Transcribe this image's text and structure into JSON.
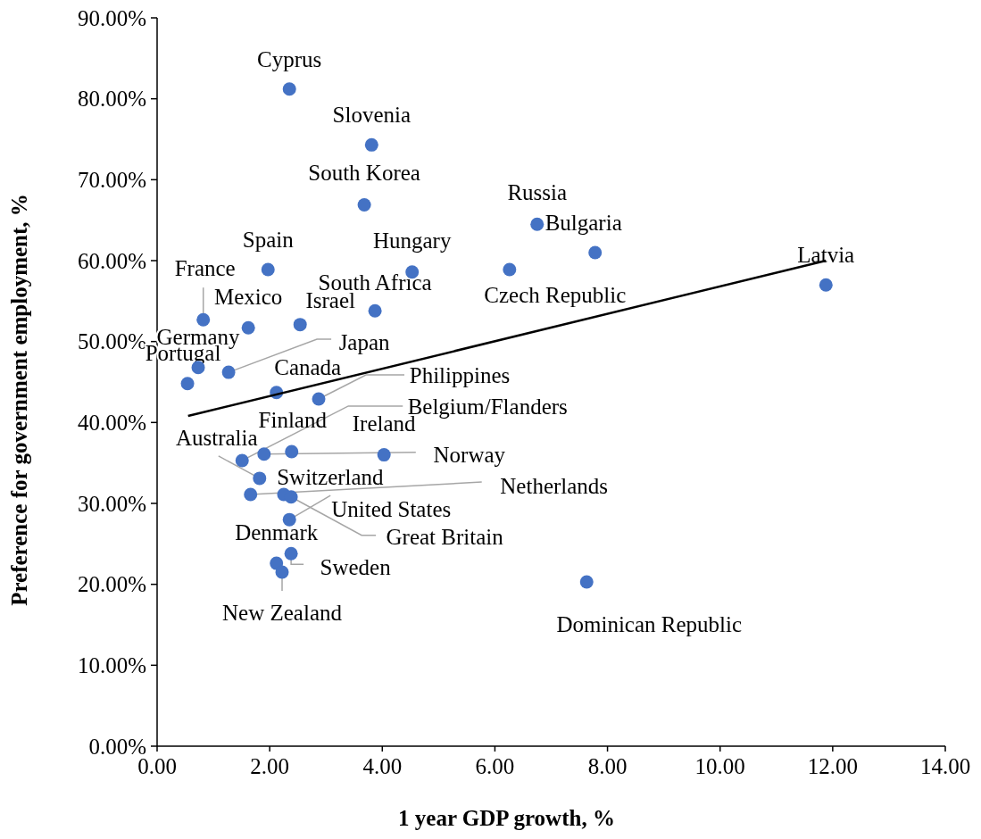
{
  "chart_data": {
    "type": "scatter",
    "xlabel": "1 year GDP growth, %",
    "ylabel": "Preference for government employment, %",
    "xlim": [
      0,
      14
    ],
    "xticks": [
      {
        "value": 0,
        "label": "0.00"
      },
      {
        "value": 2,
        "label": "2.00"
      },
      {
        "value": 4,
        "label": "4.00"
      },
      {
        "value": 6,
        "label": "6.00"
      },
      {
        "value": 8,
        "label": "8.00"
      },
      {
        "value": 10,
        "label": "10.00"
      },
      {
        "value": 12,
        "label": "12.00"
      },
      {
        "value": 14,
        "label": "14.00"
      }
    ],
    "ylim": [
      0,
      90
    ],
    "yticks": [
      {
        "value": 0,
        "label": "0.00%"
      },
      {
        "value": 10,
        "label": "10.00%"
      },
      {
        "value": 20,
        "label": "20.00%"
      },
      {
        "value": 30,
        "label": "30.00%"
      },
      {
        "value": 40,
        "label": "40.00%"
      },
      {
        "value": 50,
        "label": "50.00%"
      },
      {
        "value": 60,
        "label": "60.00%"
      },
      {
        "value": 70,
        "label": "70.00%"
      },
      {
        "value": 80,
        "label": "80.00%"
      },
      {
        "value": 90,
        "label": "90.00%"
      }
    ],
    "grid": false,
    "marker": "circle",
    "series": [
      {
        "color": "#4472c4",
        "x": [
          2.35,
          3.81,
          3.68,
          6.75,
          7.78,
          11.88,
          1.97,
          4.53,
          6.26,
          3.87,
          2.54,
          0.82,
          1.62,
          0.73,
          0.54,
          1.27,
          2.12,
          2.87,
          1.51,
          1.9,
          2.39,
          4.03,
          1.82,
          1.66,
          2.25,
          2.38,
          2.35,
          2.38,
          2.12,
          2.22,
          7.63
        ],
        "values": [
          81.2,
          74.3,
          66.9,
          64.5,
          61.0,
          57.0,
          58.9,
          58.6,
          58.9,
          53.8,
          52.1,
          52.7,
          51.7,
          46.8,
          44.8,
          46.2,
          43.7,
          42.9,
          35.3,
          36.1,
          36.4,
          36.0,
          33.1,
          31.1,
          31.1,
          30.8,
          28.0,
          23.8,
          22.6,
          21.5,
          20.3
        ]
      },
      {
        "type": "line",
        "marker": "none",
        "color": "#000000",
        "x": [
          0.55,
          11.88
        ],
        "values": [
          40.8,
          60.0
        ]
      }
    ],
    "annotations": [
      {
        "text": "Cyprus",
        "x": 2.35,
        "y": 81.2
      },
      {
        "text": "Slovenia",
        "x": 3.81,
        "y": 74.3
      },
      {
        "text": "South Korea",
        "x": 3.68,
        "y": 66.9
      },
      {
        "text": "Russia",
        "x": 6.75,
        "y": 64.5
      },
      {
        "text": "Bulgaria",
        "x": 7.78,
        "y": 61.0
      },
      {
        "text": "Latvia",
        "x": 11.88,
        "y": 57.0
      },
      {
        "text": "Spain",
        "x": 1.97,
        "y": 58.9
      },
      {
        "text": "Hungary",
        "x": 4.53,
        "y": 58.6
      },
      {
        "text": "Czech Republic",
        "x": 6.26,
        "y": 58.9
      },
      {
        "text": "South Africa",
        "x": 3.87,
        "y": 53.8
      },
      {
        "text": "Israel",
        "x": 2.54,
        "y": 52.1
      },
      {
        "text": "France",
        "x": 0.82,
        "y": 52.7
      },
      {
        "text": "Mexico",
        "x": 1.62,
        "y": 51.7
      },
      {
        "text": "Germany",
        "x": 0.73,
        "y": 46.8
      },
      {
        "text": "Portugal",
        "x": 0.54,
        "y": 44.8
      },
      {
        "text": "Japan",
        "x": 1.27,
        "y": 46.2
      },
      {
        "text": "Canada",
        "x": 2.12,
        "y": 43.7
      },
      {
        "text": "Philippines",
        "x": 2.87,
        "y": 42.9
      },
      {
        "text": "Belgium/Flanders",
        "x": 1.51,
        "y": 35.3
      },
      {
        "text": "Norway",
        "x": 1.9,
        "y": 36.1
      },
      {
        "text": "Finland",
        "x": 2.39,
        "y": 36.4
      },
      {
        "text": "Ireland",
        "x": 4.03,
        "y": 36.0
      },
      {
        "text": "Australia",
        "x": 1.82,
        "y": 33.1
      },
      {
        "text": "Netherlands",
        "x": 1.66,
        "y": 31.1
      },
      {
        "text": "Switzerland",
        "x": 2.25,
        "y": 31.1
      },
      {
        "text": "Great Britain",
        "x": 2.38,
        "y": 30.8
      },
      {
        "text": "United States",
        "x": 2.35,
        "y": 28.0
      },
      {
        "text": "Sweden",
        "x": 2.38,
        "y": 23.8
      },
      {
        "text": "Denmark",
        "x": 2.12,
        "y": 22.6
      },
      {
        "text": "New Zealand",
        "x": 2.22,
        "y": 21.5
      },
      {
        "text": "Dominican Republic",
        "x": 7.63,
        "y": 20.3
      }
    ]
  }
}
